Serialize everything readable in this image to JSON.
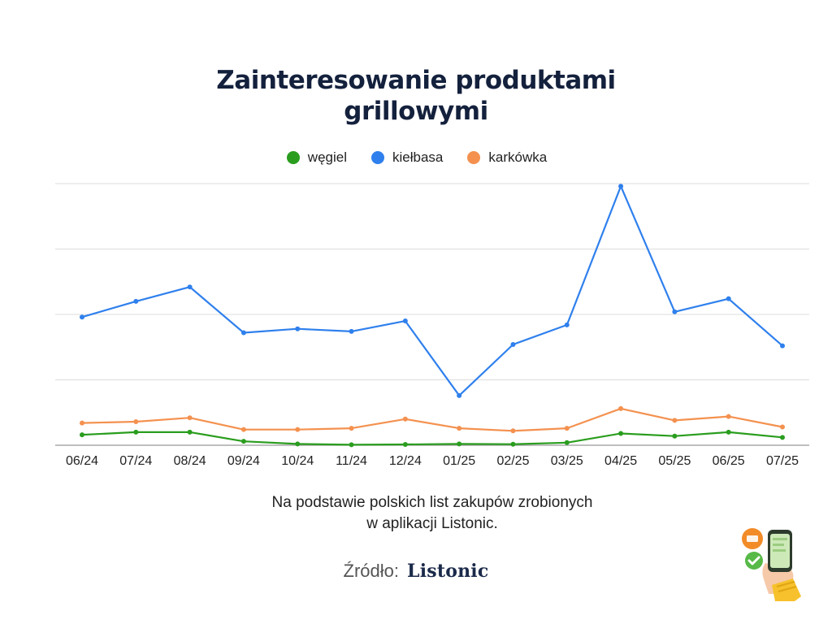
{
  "title_lines": [
    "Zainteresowanie produktami",
    "grillowymi"
  ],
  "footnote_lines": [
    "Na podstawie polskich list zakupów zrobionych",
    "w aplikacji Listonic."
  ],
  "source_label": "Źródło:",
  "source_brand": "Listonic",
  "colors": {
    "grid": "#dddddd",
    "axis": "#999999",
    "title": "#14213d"
  },
  "chart_data": {
    "type": "line",
    "title": "Zainteresowanie produktami grillowymi",
    "xlabel": "",
    "ylabel": "",
    "ylim": [
      0,
      100
    ],
    "yticks_visible": false,
    "grid": true,
    "legend_position": "top-center",
    "categories": [
      "06/24",
      "07/24",
      "08/24",
      "09/24",
      "10/24",
      "11/24",
      "12/24",
      "01/25",
      "02/25",
      "03/25",
      "04/25",
      "05/25",
      "06/25",
      "07/25"
    ],
    "series": [
      {
        "name": "węgiel",
        "color": "#2a9d1e",
        "values": [
          4,
          5,
          5,
          1.5,
          0.5,
          0.2,
          0.3,
          0.5,
          0.4,
          1,
          4.5,
          3.5,
          5,
          3
        ]
      },
      {
        "name": "kiełbasa",
        "color": "#2f80ed",
        "values": [
          49,
          55,
          60.5,
          43,
          44.5,
          43.5,
          47.5,
          19,
          38.5,
          46,
          99,
          51,
          56,
          38
        ]
      },
      {
        "name": "karkówka",
        "color": "#f4914f",
        "values": [
          8.5,
          9,
          10.5,
          6,
          6,
          6.5,
          10,
          6.5,
          5.5,
          6.5,
          14,
          9.5,
          11,
          7
        ]
      }
    ]
  }
}
